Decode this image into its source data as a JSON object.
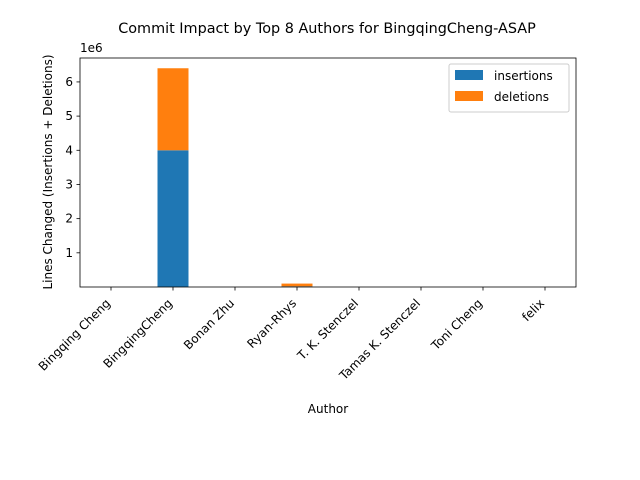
{
  "chart_data": {
    "type": "bar",
    "stacked": true,
    "title": "Commit Impact by Top 8 Authors for BingqingCheng-ASAP",
    "xlabel": "Author",
    "ylabel": "Lines Changed (Insertions + Deletions)",
    "y_offset_label": "1e6",
    "ylim": [
      0,
      6.7
    ],
    "yticks": [
      "1",
      "2",
      "3",
      "4",
      "5",
      "6"
    ],
    "y_scale_factor": 1000000,
    "grid": false,
    "legend_position": "top-right",
    "categories": [
      "Bingqing Cheng",
      "BingqingCheng",
      "Bonan Zhu",
      "Ryan-Rhys",
      "T. K. Stenczel",
      "Tamas K. Stenczel",
      "Toni Cheng",
      "felix"
    ],
    "series": [
      {
        "name": "insertions",
        "color": "#1f77b4",
        "values": [
          0,
          4.0,
          0,
          0.02,
          0,
          0,
          0,
          0
        ]
      },
      {
        "name": "deletions",
        "color": "#ff7f0e",
        "values": [
          0,
          2.4,
          0,
          0.08,
          0,
          0,
          0,
          0
        ]
      }
    ]
  }
}
